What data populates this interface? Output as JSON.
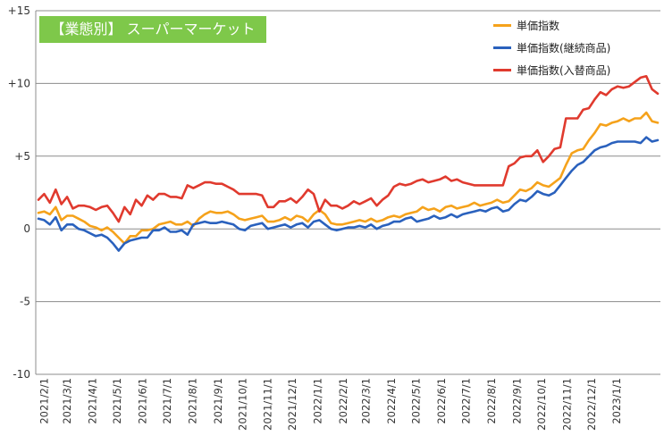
{
  "badge": {
    "label": "【業態別】 スーパーマーケット"
  },
  "colors": {
    "unit_price": "#f5a21b",
    "continuing": "#2a61bd",
    "replaced": "#e03a2e",
    "badge": "#7ec84a",
    "grid": "#8c8c8c"
  },
  "chart_data": {
    "type": "line",
    "title": "【業態別】 スーパーマーケット",
    "xlabel": "",
    "ylabel": "",
    "ylim": [
      -10,
      15
    ],
    "y_ticks": [
      "+15",
      "+10",
      "+5",
      "0",
      "-5",
      "-10"
    ],
    "y_tick_values": [
      15,
      10,
      5,
      0,
      -5,
      -10
    ],
    "grid": "horizontal",
    "legend_position": "top-right",
    "x_tick_labels": [
      "2021/2/1",
      "2021/3/1",
      "2021/4/1",
      "2021/5/1",
      "2021/6/1",
      "2021/7/1",
      "2021/8/1",
      "2021/9/1",
      "2021/10/1",
      "2021/11/1",
      "2021/12/1",
      "2022/1/1",
      "2022/2/1",
      "2022/3/1",
      "2022/4/1",
      "2022/5/1",
      "2022/6/1",
      "2022/7/1",
      "2022/8/1",
      "2022/9/1",
      "2022/10/1",
      "2022/11/1",
      "2022/12/1",
      "2023/1/1"
    ],
    "x_start": "2021/1/25",
    "x_step_days": 7,
    "series": [
      {
        "name": "単価指数",
        "color": "#f5a21b",
        "values": [
          1.1,
          1.2,
          1.0,
          1.5,
          0.6,
          0.9,
          0.9,
          0.7,
          0.5,
          0.2,
          0.1,
          -0.1,
          0.1,
          -0.2,
          -0.6,
          -1.0,
          -0.5,
          -0.5,
          -0.1,
          -0.1,
          0.0,
          0.3,
          0.4,
          0.5,
          0.3,
          0.3,
          0.5,
          0.2,
          0.7,
          1.0,
          1.2,
          1.1,
          1.1,
          1.2,
          1.0,
          0.7,
          0.6,
          0.7,
          0.8,
          0.9,
          0.5,
          0.5,
          0.6,
          0.8,
          0.6,
          0.9,
          0.8,
          0.5,
          1.0,
          1.3,
          1.0,
          0.4,
          0.3,
          0.3,
          0.4,
          0.5,
          0.6,
          0.5,
          0.7,
          0.5,
          0.6,
          0.8,
          0.9,
          0.8,
          1.0,
          1.1,
          1.2,
          1.5,
          1.3,
          1.4,
          1.2,
          1.5,
          1.6,
          1.4,
          1.5,
          1.6,
          1.8,
          1.6,
          1.7,
          1.8,
          2.0,
          1.8,
          1.9,
          2.3,
          2.7,
          2.6,
          2.8,
          3.2,
          3.0,
          2.9,
          3.2,
          3.5,
          4.4,
          5.2,
          5.4,
          5.5,
          6.1,
          6.6,
          7.2,
          7.1,
          7.3,
          7.4,
          7.6,
          7.4,
          7.6,
          7.6,
          8.0,
          7.4,
          7.3
        ]
      },
      {
        "name": "単価指数(継続商品)",
        "color": "#2a61bd",
        "values": [
          0.7,
          0.6,
          0.3,
          0.8,
          -0.1,
          0.3,
          0.3,
          0.0,
          -0.1,
          -0.3,
          -0.5,
          -0.4,
          -0.6,
          -1.0,
          -1.5,
          -1.0,
          -0.8,
          -0.7,
          -0.6,
          -0.6,
          -0.1,
          -0.1,
          0.1,
          -0.2,
          -0.2,
          -0.1,
          -0.4,
          0.3,
          0.4,
          0.5,
          0.4,
          0.4,
          0.5,
          0.4,
          0.3,
          0.0,
          -0.1,
          0.2,
          0.3,
          0.4,
          0.0,
          0.1,
          0.2,
          0.3,
          0.1,
          0.3,
          0.4,
          0.1,
          0.5,
          0.6,
          0.3,
          0.0,
          -0.1,
          0.0,
          0.1,
          0.1,
          0.2,
          0.1,
          0.3,
          0.0,
          0.2,
          0.3,
          0.5,
          0.5,
          0.7,
          0.8,
          0.5,
          0.6,
          0.7,
          0.9,
          0.7,
          0.8,
          1.0,
          0.8,
          1.0,
          1.1,
          1.2,
          1.3,
          1.2,
          1.4,
          1.5,
          1.2,
          1.3,
          1.7,
          2.0,
          1.9,
          2.2,
          2.6,
          2.4,
          2.3,
          2.5,
          3.0,
          3.5,
          4.0,
          4.4,
          4.6,
          5.0,
          5.4,
          5.6,
          5.7,
          5.9,
          6.0,
          6.0,
          6.0,
          6.0,
          5.9,
          6.3,
          6.0,
          6.1
        ]
      },
      {
        "name": "単価指数(入替商品)",
        "color": "#e03a2e",
        "values": [
          2.0,
          2.4,
          1.8,
          2.7,
          1.7,
          2.2,
          1.4,
          1.6,
          1.6,
          1.5,
          1.3,
          1.5,
          1.6,
          1.1,
          0.5,
          1.5,
          1.0,
          2.0,
          1.6,
          2.3,
          2.0,
          2.4,
          2.4,
          2.2,
          2.2,
          2.1,
          3.0,
          2.8,
          3.0,
          3.2,
          3.2,
          3.1,
          3.1,
          2.9,
          2.7,
          2.4,
          2.4,
          2.4,
          2.4,
          2.3,
          1.5,
          1.5,
          1.9,
          1.9,
          2.1,
          1.8,
          2.2,
          2.7,
          2.4,
          1.2,
          2.0,
          1.6,
          1.6,
          1.4,
          1.6,
          1.9,
          1.7,
          1.9,
          2.1,
          1.6,
          2.0,
          2.3,
          2.9,
          3.1,
          3.0,
          3.1,
          3.3,
          3.4,
          3.2,
          3.3,
          3.4,
          3.6,
          3.3,
          3.4,
          3.2,
          3.1,
          3.0,
          3.0,
          3.0,
          3.0,
          3.0,
          3.0,
          4.3,
          4.5,
          4.9,
          5.0,
          5.0,
          5.4,
          4.6,
          5.0,
          5.5,
          5.6,
          7.6,
          7.6,
          7.6,
          8.2,
          8.3,
          8.9,
          9.4,
          9.2,
          9.6,
          9.8,
          9.7,
          9.8,
          10.1,
          10.4,
          10.5,
          9.6,
          9.3
        ]
      }
    ]
  }
}
